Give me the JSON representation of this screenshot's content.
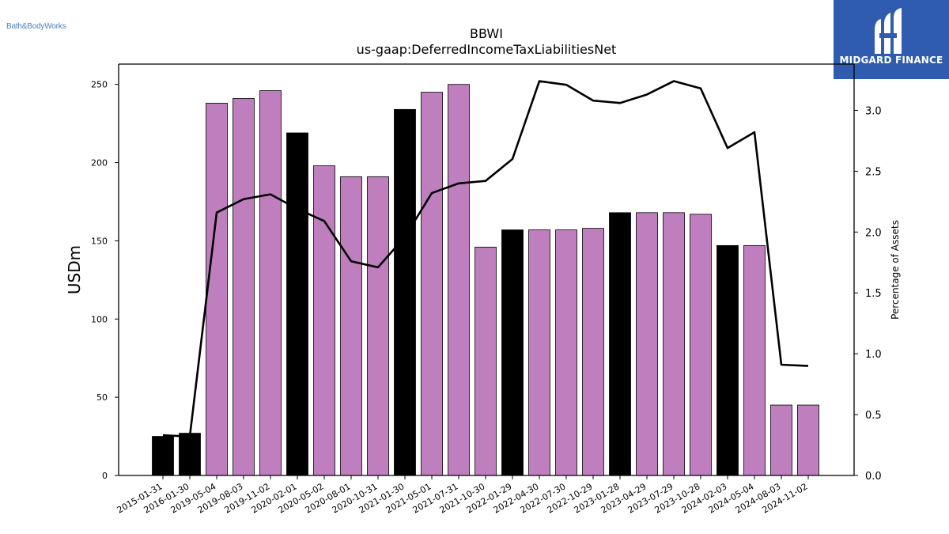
{
  "brand": {
    "left_logo_text": "Bath&BodyWorks",
    "right_logo_text": "MIDGARD FINANCE"
  },
  "chart_data": {
    "type": "bar",
    "title": "BBWI",
    "subtitle": "us-gaap:DeferredIncomeTaxLiabilitiesNet",
    "ylabel": "USDm",
    "y2label": "Percentage of Assets",
    "ylim": [
      0,
      263
    ],
    "y2lim": [
      0,
      3.38
    ],
    "yticks": [
      0,
      50,
      100,
      150,
      200,
      250
    ],
    "y2ticks": [
      0.0,
      0.5,
      1.0,
      1.5,
      2.0,
      2.5,
      3.0
    ],
    "categories": [
      "2015-01-31",
      "2016-01-30",
      "2019-05-04",
      "2019-08-03",
      "2019-11-02",
      "2020-02-01",
      "2020-05-02",
      "2020-08-01",
      "2020-10-31",
      "2021-01-30",
      "2021-05-01",
      "2021-07-31",
      "2021-10-30",
      "2022-01-29",
      "2022-04-30",
      "2022-07-30",
      "2022-10-29",
      "2023-01-28",
      "2023-04-29",
      "2023-07-29",
      "2023-10-28",
      "2024-02-03",
      "2024-05-04",
      "2024-08-03",
      "2024-11-02"
    ],
    "series": [
      {
        "type": "bar",
        "values": [
          25,
          27,
          238,
          241,
          246,
          219,
          198,
          191,
          191,
          234,
          245,
          250,
          146,
          157,
          157,
          157,
          158,
          168,
          168,
          168,
          167,
          147,
          147,
          45,
          45
        ],
        "annual": [
          true,
          true,
          false,
          false,
          false,
          true,
          false,
          false,
          false,
          true,
          false,
          false,
          false,
          true,
          false,
          false,
          false,
          true,
          false,
          false,
          false,
          true,
          false,
          false,
          false
        ]
      },
      {
        "type": "line",
        "axis": "right",
        "values": [
          0.33,
          0.32,
          2.16,
          2.27,
          2.31,
          2.19,
          2.09,
          1.76,
          1.71,
          1.96,
          2.32,
          2.4,
          2.42,
          2.6,
          3.24,
          3.21,
          3.08,
          3.06,
          3.13,
          3.24,
          3.18,
          2.69,
          2.82,
          0.91,
          0.9
        ]
      }
    ],
    "colors": {
      "annual": "#000000",
      "quarterly": "#bf7fbf",
      "line": "#000000"
    },
    "grid": false,
    "legend": "none"
  }
}
